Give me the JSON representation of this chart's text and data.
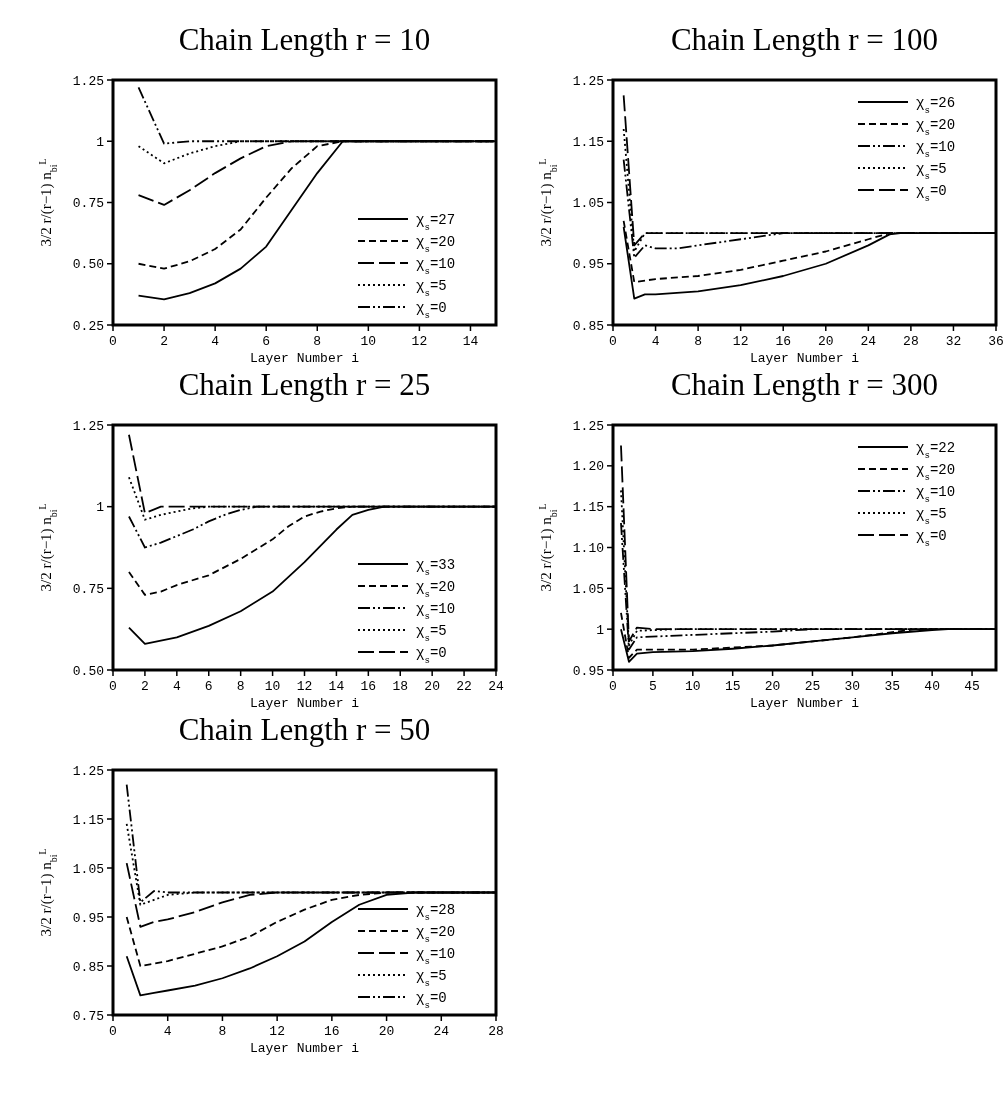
{
  "chart_data": [
    {
      "type": "line",
      "title": "Chain Length r = 10",
      "xlabel": "Layer Number i",
      "ylabel": "3/2 r/(r−1) n$_{bi}$$^{L}$",
      "xlim": [
        0,
        15
      ],
      "xticks": [
        0,
        2,
        4,
        6,
        8,
        10,
        12,
        14
      ],
      "ylim": [
        0.25,
        1.25
      ],
      "yticks": [
        0.25,
        {
          "value": 0.5,
          "label": "0.50"
        },
        0.75,
        1,
        1.25
      ],
      "grid": false,
      "legend": "bottom right",
      "series": [
        {
          "name": "χ$_{s}$=27",
          "color": "#000000",
          "line_style": "solid",
          "x": [
            1,
            2,
            3,
            4,
            5,
            6,
            7,
            8,
            9,
            15
          ],
          "values": [
            0.37,
            0.355,
            0.38,
            0.42,
            0.48,
            0.57,
            0.72,
            0.87,
            1,
            1
          ]
        },
        {
          "name": "χ$_{s}$=20",
          "color": "#000000",
          "line_style": "dashed",
          "x": [
            1,
            2,
            3,
            4,
            5,
            6,
            7,
            8,
            9,
            15
          ],
          "values": [
            0.5,
            0.48,
            0.51,
            0.56,
            0.64,
            0.77,
            0.89,
            0.98,
            1,
            1
          ]
        },
        {
          "name": "χ$_{s}$=10",
          "color": "#000000",
          "line_style": "longdash",
          "x": [
            1,
            2,
            3,
            4,
            5,
            6,
            7,
            15
          ],
          "values": [
            0.78,
            0.74,
            0.8,
            0.87,
            0.93,
            0.98,
            1,
            1
          ]
        },
        {
          "name": "χ$_{s}$=5",
          "color": "#000000",
          "line_style": "dotted",
          "x": [
            1,
            2,
            3,
            4,
            5,
            15
          ],
          "values": [
            0.98,
            0.91,
            0.95,
            0.98,
            1,
            1
          ]
        },
        {
          "name": "χ$_{s}$=0",
          "color": "#000000",
          "line_style": "dashdot",
          "x": [
            1,
            2,
            3,
            15
          ],
          "values": [
            1.22,
            0.99,
            1,
            1
          ]
        }
      ]
    },
    {
      "type": "line",
      "title": "Chain Length r = 100",
      "xlabel": "Layer Number i",
      "ylabel": "3/2 r/(r−1) n$_{bi}$$^{L}$",
      "xlim": [
        0,
        36
      ],
      "xticks": [
        0,
        4,
        8,
        12,
        16,
        20,
        24,
        28,
        32,
        36
      ],
      "ylim": [
        0.85,
        1.25
      ],
      "yticks": [
        0.85,
        0.95,
        1.05,
        1.15,
        1.25
      ],
      "grid": false,
      "legend": "top right",
      "series": [
        {
          "name": "χ$_{s}$=26",
          "color": "#000000",
          "line_style": "solid",
          "x": [
            1,
            2,
            3,
            4,
            8,
            12,
            16,
            20,
            24,
            26,
            27,
            36
          ],
          "values": [
            1.01,
            0.893,
            0.9,
            0.9,
            0.905,
            0.915,
            0.93,
            0.95,
            0.98,
            0.998,
            1,
            1
          ]
        },
        {
          "name": "χ$_{s}$=20",
          "color": "#000000",
          "line_style": "dashed",
          "x": [
            1,
            2,
            4,
            8,
            12,
            16,
            20,
            24,
            26,
            36
          ],
          "values": [
            1.02,
            0.92,
            0.925,
            0.93,
            0.94,
            0.955,
            0.97,
            0.99,
            1,
            1
          ]
        },
        {
          "name": "χ$_{s}$=10",
          "color": "#000000",
          "line_style": "dashdot",
          "x": [
            1,
            2,
            3,
            4,
            6,
            12,
            16,
            36
          ],
          "values": [
            1.12,
            0.96,
            0.98,
            0.975,
            0.975,
            0.99,
            1,
            1
          ]
        },
        {
          "name": "χ$_{s}$=5",
          "color": "#000000",
          "line_style": "dotted",
          "x": [
            1,
            2,
            3,
            36
          ],
          "values": [
            1.17,
            0.97,
            1,
            1
          ]
        },
        {
          "name": "χ$_{s}$=0",
          "color": "#000000",
          "line_style": "longdash",
          "x": [
            1,
            2,
            3,
            36
          ],
          "values": [
            1.225,
            0.98,
            1,
            1
          ]
        }
      ]
    },
    {
      "type": "line",
      "title": "Chain Length r = 25",
      "xlabel": "Layer Number i",
      "ylabel": "3/2 r/(r−1) n$_{bi}$$^{L}$",
      "xlim": [
        0,
        24
      ],
      "xticks": [
        0,
        2,
        4,
        6,
        8,
        10,
        12,
        14,
        16,
        18,
        20,
        22,
        24
      ],
      "ylim": [
        0.5,
        1.25
      ],
      "yticks": [
        {
          "value": 0.5,
          "label": "0.50"
        },
        0.75,
        1,
        1.25
      ],
      "grid": false,
      "legend": "bottom right",
      "series": [
        {
          "name": "χ$_{s}$=33",
          "color": "#000000",
          "line_style": "solid",
          "x": [
            1,
            2,
            4,
            6,
            8,
            10,
            12,
            14,
            15,
            16,
            17,
            24
          ],
          "values": [
            0.63,
            0.58,
            0.6,
            0.635,
            0.68,
            0.74,
            0.83,
            0.93,
            0.975,
            0.99,
            1,
            1
          ]
        },
        {
          "name": "χ$_{s}$=20",
          "color": "#000000",
          "line_style": "dashed",
          "x": [
            1,
            2,
            3,
            4,
            6,
            8,
            10,
            11,
            12,
            13,
            14,
            15,
            24
          ],
          "values": [
            0.8,
            0.73,
            0.74,
            0.76,
            0.79,
            0.84,
            0.9,
            0.94,
            0.97,
            0.985,
            0.995,
            1,
            1
          ]
        },
        {
          "name": "χ$_{s}$=10",
          "color": "#000000",
          "line_style": "dashdot",
          "x": [
            1,
            2,
            3,
            4,
            5,
            6,
            7,
            8,
            9,
            24
          ],
          "values": [
            0.97,
            0.875,
            0.89,
            0.91,
            0.93,
            0.955,
            0.975,
            0.99,
            1,
            1
          ]
        },
        {
          "name": "χ$_{s}$=5",
          "color": "#000000",
          "line_style": "dotted",
          "x": [
            1,
            2,
            3,
            4,
            5,
            6,
            24
          ],
          "values": [
            1.09,
            0.96,
            0.975,
            0.985,
            0.995,
            1,
            1
          ]
        },
        {
          "name": "χ$_{s}$=0",
          "color": "#000000",
          "line_style": "longdash",
          "x": [
            1,
            2,
            3,
            24
          ],
          "values": [
            1.22,
            0.98,
            1,
            1
          ]
        }
      ]
    },
    {
      "type": "line",
      "title": "Chain Length r = 300",
      "xlabel": "Layer Number i",
      "ylabel": "3/2 r/(r−1) n$_{bi}$$^{L}$",
      "xlim": [
        0,
        48
      ],
      "xticks": [
        0,
        5,
        10,
        15,
        20,
        25,
        30,
        35,
        40,
        45
      ],
      "ylim": [
        0.95,
        1.25
      ],
      "yticks": [
        0.95,
        1,
        1.05,
        {
          "value": 1.1,
          "label": "1.10"
        },
        1.15,
        {
          "value": 1.2,
          "label": "1.20"
        },
        1.25
      ],
      "grid": false,
      "legend": "top right",
      "series": [
        {
          "name": "χ$_{s}$=22",
          "color": "#000000",
          "line_style": "solid",
          "x": [
            1,
            2,
            3,
            5,
            10,
            15,
            20,
            25,
            30,
            35,
            40,
            42,
            48
          ],
          "values": [
            1,
            0.96,
            0.97,
            0.972,
            0.973,
            0.976,
            0.98,
            0.985,
            0.99,
            0.995,
            0.999,
            1,
            1
          ]
        },
        {
          "name": "χ$_{s}$=20",
          "color": "#000000",
          "line_style": "dashed",
          "x": [
            1,
            2,
            3,
            10,
            20,
            30,
            38,
            48
          ],
          "values": [
            1.02,
            0.965,
            0.975,
            0.975,
            0.98,
            0.99,
            1,
            1
          ]
        },
        {
          "name": "χ$_{s}$=10",
          "color": "#000000",
          "line_style": "dashdot",
          "x": [
            1,
            2,
            3,
            10,
            15,
            20,
            25,
            48
          ],
          "values": [
            1.13,
            0.975,
            0.99,
            0.993,
            0.995,
            0.997,
            1,
            1
          ]
        },
        {
          "name": "χ$_{s}$=5",
          "color": "#000000",
          "line_style": "dotted",
          "x": [
            1,
            2,
            3,
            8,
            48
          ],
          "values": [
            1.17,
            0.98,
            0.998,
            1,
            1
          ]
        },
        {
          "name": "χ$_{s}$=0",
          "color": "#000000",
          "line_style": "longdash",
          "x": [
            1,
            2,
            3,
            5,
            48
          ],
          "values": [
            1.225,
            0.985,
            1.002,
            1,
            1
          ]
        }
      ]
    },
    {
      "type": "line",
      "title": "Chain Length r = 50",
      "xlabel": "Layer Number i",
      "ylabel": "3/2 r/(r−1) n$_{bi}$$^{L}$",
      "xlim": [
        0,
        28
      ],
      "xticks": [
        0,
        4,
        8,
        12,
        16,
        20,
        24,
        28
      ],
      "ylim": [
        0.75,
        1.25
      ],
      "yticks": [
        0.75,
        0.85,
        0.95,
        1.05,
        1.15,
        1.25
      ],
      "grid": false,
      "legend": "bottom right",
      "series": [
        {
          "name": "χ$_{s}$=28",
          "color": "#000000",
          "line_style": "solid",
          "x": [
            1,
            2,
            3,
            4,
            6,
            8,
            10,
            12,
            14,
            16,
            18,
            20,
            22,
            28
          ],
          "values": [
            0.87,
            0.79,
            0.795,
            0.8,
            0.81,
            0.825,
            0.845,
            0.87,
            0.9,
            0.94,
            0.975,
            0.995,
            1,
            1
          ]
        },
        {
          "name": "χ$_{s}$=20",
          "color": "#000000",
          "line_style": "dashed",
          "x": [
            1,
            2,
            4,
            6,
            8,
            10,
            12,
            14,
            16,
            18,
            20,
            28
          ],
          "values": [
            0.95,
            0.85,
            0.86,
            0.875,
            0.89,
            0.91,
            0.94,
            0.965,
            0.985,
            0.995,
            1,
            1
          ]
        },
        {
          "name": "χ$_{s}$=10",
          "color": "#000000",
          "line_style": "longdash",
          "x": [
            1,
            2,
            3,
            4,
            6,
            8,
            10,
            12,
            28
          ],
          "values": [
            1.06,
            0.93,
            0.94,
            0.945,
            0.96,
            0.98,
            0.995,
            1,
            1
          ]
        },
        {
          "name": "χ$_{s}$=5",
          "color": "#000000",
          "line_style": "dotted",
          "x": [
            1,
            2,
            3,
            4,
            6,
            28
          ],
          "values": [
            1.14,
            0.975,
            0.985,
            0.995,
            1,
            1
          ]
        },
        {
          "name": "χ$_{s}$=0",
          "color": "#000000",
          "line_style": "dashdot",
          "x": [
            1,
            2,
            3,
            4,
            28
          ],
          "values": [
            1.22,
            0.98,
            1.003,
            1,
            1
          ]
        }
      ]
    }
  ]
}
